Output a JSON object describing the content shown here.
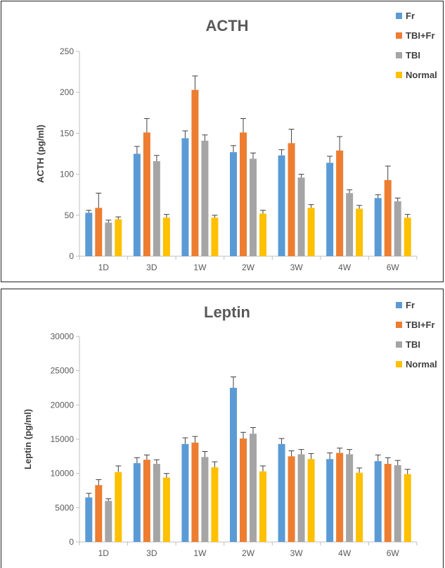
{
  "chart_data": [
    {
      "type": "bar",
      "title": "ACTH",
      "xlabel": "",
      "ylabel": "ACTH (pg/ml)",
      "ylim": [
        0,
        250
      ],
      "yticks": [
        0,
        50,
        100,
        150,
        200,
        250
      ],
      "grid": false,
      "legend_position": "top-right",
      "categories": [
        "1D",
        "3D",
        "1W",
        "2W",
        "3W",
        "4W",
        "6W"
      ],
      "series": [
        {
          "name": "Fr",
          "color": "#5B9BD5",
          "values": [
            53,
            125,
            144,
            127,
            123,
            114,
            71
          ],
          "errors": [
            3,
            9,
            9,
            8,
            7,
            8,
            4
          ]
        },
        {
          "name": "TBI+Fr",
          "color": "#ED7D31",
          "values": [
            59,
            151,
            203,
            151,
            138,
            129,
            93
          ],
          "errors": [
            18,
            17,
            17,
            17,
            17,
            17,
            17
          ]
        },
        {
          "name": "TBI",
          "color": "#A5A5A5",
          "values": [
            41,
            116,
            141,
            119,
            96,
            77,
            67
          ],
          "errors": [
            3,
            7,
            7,
            7,
            4,
            4,
            4
          ]
        },
        {
          "name": "Normal",
          "color": "#FFC000",
          "values": [
            45,
            47,
            47,
            52,
            59,
            58,
            47
          ],
          "errors": [
            3,
            4,
            3,
            4,
            4,
            4,
            4
          ]
        }
      ]
    },
    {
      "type": "bar",
      "title": "Leptin",
      "xlabel": "",
      "ylabel": "Leptin (pg/ml)",
      "ylim": [
        0,
        30000
      ],
      "yticks": [
        0,
        5000,
        10000,
        15000,
        20000,
        25000,
        30000
      ],
      "grid": false,
      "legend_position": "top-right",
      "categories": [
        "1D",
        "3D",
        "1W",
        "2W",
        "3W",
        "4W",
        "6W"
      ],
      "series": [
        {
          "name": "Fr",
          "color": "#5B9BD5",
          "values": [
            6500,
            11500,
            14300,
            22500,
            14300,
            12100,
            11800
          ],
          "errors": [
            600,
            800,
            900,
            1600,
            800,
            900,
            900
          ]
        },
        {
          "name": "TBI+Fr",
          "color": "#ED7D31",
          "values": [
            8300,
            12000,
            14500,
            15100,
            12500,
            13000,
            11400
          ],
          "errors": [
            800,
            700,
            900,
            900,
            800,
            700,
            900
          ]
        },
        {
          "name": "TBI",
          "color": "#A5A5A5",
          "values": [
            6000,
            11400,
            12400,
            15800,
            12800,
            12800,
            11200
          ],
          "errors": [
            300,
            600,
            800,
            900,
            700,
            700,
            700
          ]
        },
        {
          "name": "Normal",
          "color": "#FFC000",
          "values": [
            10200,
            9400,
            10900,
            10300,
            12100,
            10100,
            9900
          ],
          "errors": [
            900,
            600,
            800,
            800,
            800,
            700,
            700
          ]
        }
      ]
    }
  ],
  "legends": [
    {
      "entries": [
        "Fr",
        "TBI+Fr",
        "TBI",
        "Normal"
      ]
    },
    {
      "entries": [
        "Fr",
        "TBI+Fr",
        "TBI",
        "Normal"
      ]
    }
  ]
}
